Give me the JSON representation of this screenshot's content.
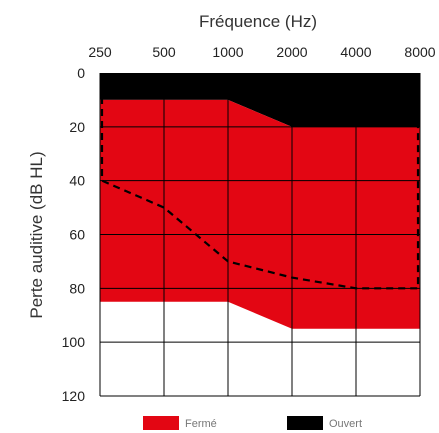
{
  "chart_data": {
    "type": "area",
    "xlabel": "Fréquence (Hz)",
    "ylabel": "Perte auditive (dB HL)",
    "x_ticks": [
      "250",
      "500",
      "1000",
      "2000",
      "4000",
      "8000"
    ],
    "y_ticks": [
      "0",
      "20",
      "40",
      "60",
      "80",
      "100",
      "120"
    ],
    "ylim": [
      0,
      120
    ],
    "y_inverted": true,
    "grid": true,
    "colors": {
      "ferme": "#e30613",
      "ouvert": "#000000",
      "grid": "#000000",
      "dashed": "#000000"
    },
    "series": [
      {
        "name": "Ouvert",
        "kind": "band",
        "x": [
          "250",
          "500",
          "1000",
          "2000",
          "4000",
          "8000"
        ],
        "top": [
          0,
          0,
          0,
          0,
          0,
          0
        ],
        "bottom": [
          10,
          10,
          10,
          20,
          20,
          20
        ]
      },
      {
        "name": "Fermé",
        "kind": "band",
        "x": [
          "250",
          "500",
          "1000",
          "2000",
          "4000",
          "8000"
        ],
        "top": [
          10,
          10,
          10,
          20,
          20,
          20
        ],
        "bottom": [
          85,
          85,
          85,
          95,
          95,
          95
        ]
      },
      {
        "kind": "dashed-outline",
        "x": [
          "250",
          "500",
          "1000",
          "2000",
          "4000",
          "8000"
        ],
        "top": [
          0,
          0,
          0,
          0,
          0,
          0
        ],
        "bottom": [
          40,
          50,
          70,
          76,
          80,
          80
        ]
      }
    ],
    "legend": {
      "placement": "bottom",
      "items": [
        {
          "label": "Fermé",
          "color": "#e30613"
        },
        {
          "label": "Ouvert",
          "color": "#000000"
        }
      ]
    }
  }
}
